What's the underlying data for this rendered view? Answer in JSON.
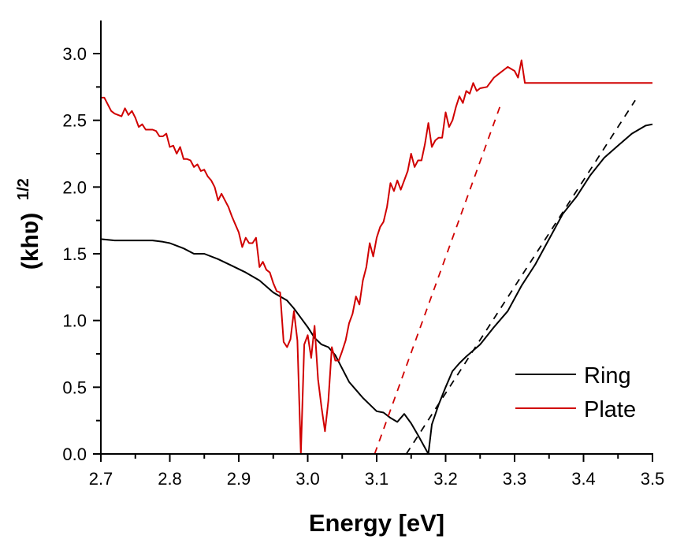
{
  "chart_data": {
    "type": "line",
    "title": "",
    "xlabel": "Energy [eV]",
    "ylabel_main": "(khʋ)",
    "ylabel_sup": "1/2",
    "xlim": [
      2.7,
      3.5
    ],
    "ylim": [
      0.0,
      3.25
    ],
    "x_ticks": [
      "2.7",
      "2.8",
      "2.9",
      "3.0",
      "3.1",
      "3.2",
      "3.3",
      "3.4",
      "3.5"
    ],
    "y_ticks": [
      "0.0",
      "0.5",
      "1.0",
      "1.5",
      "2.0",
      "2.5",
      "3.0"
    ],
    "grid": false,
    "legend_position": "bottom-right",
    "series": [
      {
        "name": "Ring",
        "color": "#000000",
        "style": "solid",
        "x": [
          2.7,
          2.72,
          2.74,
          2.76,
          2.775,
          2.79,
          2.8,
          2.81,
          2.82,
          2.835,
          2.85,
          2.87,
          2.89,
          2.91,
          2.93,
          2.95,
          2.97,
          2.98,
          2.99,
          3.0,
          3.01,
          3.02,
          3.03,
          3.04,
          3.05,
          3.06,
          3.07,
          3.08,
          3.09,
          3.1,
          3.11,
          3.12,
          3.13,
          3.14,
          3.15,
          3.16,
          3.175,
          3.18,
          3.19,
          3.2,
          3.21,
          3.22,
          3.23,
          3.25,
          3.27,
          3.29,
          3.31,
          3.33,
          3.35,
          3.37,
          3.39,
          3.41,
          3.43,
          3.45,
          3.47,
          3.49,
          3.5
        ],
        "y": [
          1.61,
          1.6,
          1.6,
          1.6,
          1.6,
          1.59,
          1.58,
          1.56,
          1.54,
          1.5,
          1.5,
          1.46,
          1.41,
          1.36,
          1.3,
          1.21,
          1.15,
          1.09,
          1.02,
          0.95,
          0.87,
          0.82,
          0.8,
          0.74,
          0.64,
          0.54,
          0.48,
          0.42,
          0.37,
          0.32,
          0.31,
          0.27,
          0.24,
          0.3,
          0.23,
          0.14,
          0.0,
          0.22,
          0.37,
          0.5,
          0.62,
          0.68,
          0.73,
          0.82,
          0.95,
          1.07,
          1.26,
          1.42,
          1.61,
          1.8,
          1.93,
          2.09,
          2.22,
          2.31,
          2.4,
          2.46,
          2.47
        ]
      },
      {
        "name": "Plate",
        "color": "#d00000",
        "style": "solid",
        "x": [
          2.7,
          2.705,
          2.71,
          2.715,
          2.72,
          2.73,
          2.735,
          2.74,
          2.745,
          2.75,
          2.755,
          2.76,
          2.765,
          2.77,
          2.775,
          2.78,
          2.785,
          2.79,
          2.795,
          2.8,
          2.805,
          2.81,
          2.815,
          2.82,
          2.825,
          2.83,
          2.835,
          2.84,
          2.845,
          2.85,
          2.855,
          2.86,
          2.865,
          2.87,
          2.875,
          2.88,
          2.885,
          2.89,
          2.895,
          2.9,
          2.905,
          2.91,
          2.915,
          2.92,
          2.925,
          2.93,
          2.935,
          2.94,
          2.945,
          2.95,
          2.955,
          2.96,
          2.965,
          2.97,
          2.975,
          2.98,
          2.985,
          2.99,
          2.995,
          3.0,
          3.005,
          3.01,
          3.015,
          3.02,
          3.025,
          3.03,
          3.035,
          3.04,
          3.045,
          3.05,
          3.055,
          3.06,
          3.065,
          3.07,
          3.075,
          3.08,
          3.085,
          3.09,
          3.095,
          3.1,
          3.105,
          3.11,
          3.115,
          3.12,
          3.125,
          3.13,
          3.135,
          3.14,
          3.145,
          3.15,
          3.155,
          3.16,
          3.165,
          3.17,
          3.175,
          3.18,
          3.185,
          3.19,
          3.195,
          3.2,
          3.205,
          3.21,
          3.215,
          3.22,
          3.225,
          3.23,
          3.235,
          3.24,
          3.245,
          3.25,
          3.26,
          3.27,
          3.28,
          3.29,
          3.3,
          3.305,
          3.31,
          3.315,
          3.32,
          3.33,
          3.335,
          3.34,
          3.345,
          3.35,
          3.36,
          3.365,
          3.37,
          3.38,
          3.39,
          3.395,
          3.4,
          3.405,
          3.41,
          3.42,
          3.43,
          3.435,
          3.44,
          3.45,
          3.46,
          3.465,
          3.47,
          3.48,
          3.485,
          3.49,
          3.5
        ],
        "y": [
          2.67,
          2.67,
          2.62,
          2.57,
          2.55,
          2.53,
          2.59,
          2.54,
          2.57,
          2.52,
          2.45,
          2.47,
          2.43,
          2.43,
          2.43,
          2.42,
          2.38,
          2.38,
          2.4,
          2.3,
          2.31,
          2.25,
          2.3,
          2.21,
          2.21,
          2.2,
          2.15,
          2.17,
          2.12,
          2.13,
          2.08,
          2.05,
          2.0,
          1.9,
          1.95,
          1.9,
          1.85,
          1.78,
          1.72,
          1.66,
          1.55,
          1.62,
          1.58,
          1.58,
          1.62,
          1.4,
          1.44,
          1.38,
          1.36,
          1.28,
          1.22,
          1.21,
          0.84,
          0.8,
          0.86,
          1.07,
          0.85,
          0.0,
          0.82,
          0.89,
          0.72,
          0.96,
          0.56,
          0.35,
          0.17,
          0.4,
          0.8,
          0.7,
          0.7,
          0.77,
          0.85,
          0.98,
          1.05,
          1.18,
          1.12,
          1.3,
          1.4,
          1.58,
          1.48,
          1.62,
          1.7,
          1.74,
          1.85,
          2.03,
          1.97,
          2.05,
          1.98,
          2.05,
          2.12,
          2.25,
          2.15,
          2.2,
          2.2,
          2.32,
          2.48,
          2.3,
          2.35,
          2.37,
          2.37,
          2.56,
          2.45,
          2.5,
          2.6,
          2.68,
          2.63,
          2.72,
          2.7,
          2.78,
          2.72,
          2.74,
          2.75,
          2.82,
          2.86,
          2.9,
          2.87,
          2.82,
          2.95,
          2.78,
          2.78,
          2.78,
          2.78,
          2.78,
          2.78,
          2.78,
          2.78,
          2.78,
          2.78,
          2.78,
          2.78,
          2.78,
          2.78,
          2.78,
          2.78,
          2.78,
          2.78,
          2.78,
          2.78,
          2.78,
          2.78,
          2.78,
          2.78,
          2.78,
          2.78,
          2.78,
          2.78
        ]
      },
      {
        "name": "Plate fit",
        "color": "#d00000",
        "style": "dashed",
        "x": [
          3.097,
          3.28
        ],
        "y": [
          0.0,
          2.62
        ]
      },
      {
        "name": "Ring fit",
        "color": "#000000",
        "style": "dashed",
        "x": [
          3.143,
          3.475
        ],
        "y": [
          0.0,
          2.65
        ]
      }
    ],
    "legend": [
      {
        "label": "Ring",
        "color": "#000000"
      },
      {
        "label": "Plate",
        "color": "#d00000"
      }
    ]
  }
}
